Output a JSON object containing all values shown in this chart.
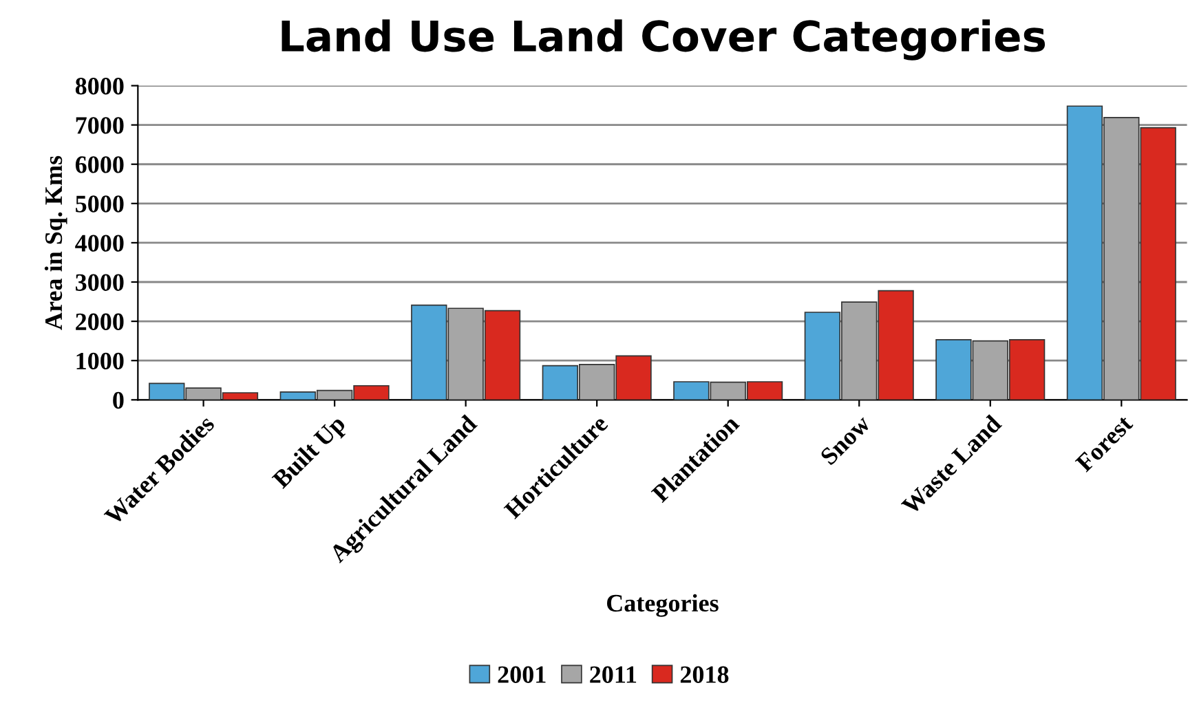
{
  "chart_data": {
    "type": "bar",
    "title": "Land Use Land Cover Categories",
    "xlabel": "Categories",
    "ylabel": "Area in Sq. Kms",
    "categories": [
      "Water Bodies",
      "Built Up",
      "Agricultural Land",
      "Horticulture",
      "Plantation",
      "Snow",
      "Waste Land",
      "Forest"
    ],
    "series": [
      {
        "name": "2001",
        "color": "#4fa6d8",
        "values": [
          420,
          200,
          2410,
          870,
          460,
          2230,
          1530,
          7480
        ]
      },
      {
        "name": "2011",
        "color": "#a6a6a6",
        "values": [
          300,
          240,
          2330,
          900,
          450,
          2490,
          1500,
          7190
        ]
      },
      {
        "name": "2018",
        "color": "#d9291f",
        "values": [
          180,
          360,
          2270,
          1120,
          460,
          2780,
          1530,
          6930
        ]
      }
    ],
    "ylim": [
      0,
      8000
    ],
    "yticks": [
      0,
      1000,
      2000,
      3000,
      4000,
      5000,
      6000,
      7000,
      8000
    ],
    "grid": "y",
    "legend": "bottom"
  }
}
